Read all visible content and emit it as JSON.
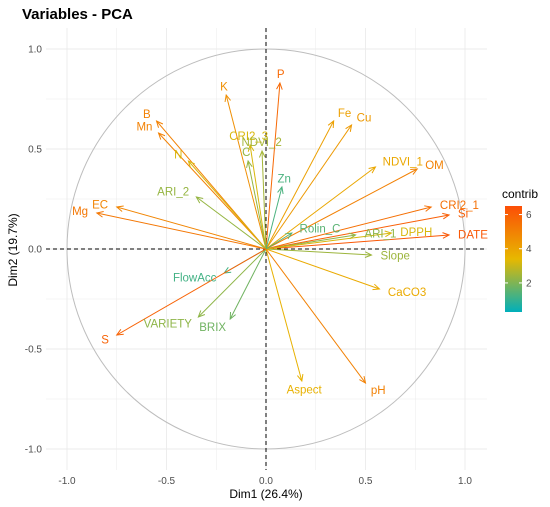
{
  "chart_data": {
    "type": "scatter",
    "title": "Variables - PCA",
    "xlabel": "Dim1 (26.4%)",
    "ylabel": "Dim2 (19.7%)",
    "xlim": [
      -1.1,
      1.1
    ],
    "ylim": [
      -1.05,
      1.05
    ],
    "xticks": [
      "-1.0",
      "-0.5",
      "0.0",
      "0.5",
      "1.0"
    ],
    "yticks": [
      "-1.0",
      "-0.5",
      "0.0",
      "0.5",
      "1.0"
    ],
    "grid": true,
    "legend": {
      "title": "contrib",
      "ticks": [
        "2",
        "4",
        "6"
      ],
      "range": [
        0.3,
        6.5
      ],
      "placement": "right"
    },
    "variables": [
      {
        "name": "P",
        "x": 0.07,
        "y": 0.83,
        "contrib": 5.7
      },
      {
        "name": "K",
        "x": -0.2,
        "y": 0.77,
        "contrib": 4.6
      },
      {
        "name": "B",
        "x": -0.55,
        "y": 0.64,
        "contrib": 5.0
      },
      {
        "name": "Mn",
        "x": -0.54,
        "y": 0.58,
        "contrib": 5.0
      },
      {
        "name": "CRI2_3",
        "x": -0.08,
        "y": 0.52,
        "contrib": 3.2
      },
      {
        "name": "NDVI_2",
        "x": -0.02,
        "y": 0.49,
        "contrib": 2.5
      },
      {
        "name": "C",
        "x": -0.09,
        "y": 0.44,
        "contrib": 2.3
      },
      {
        "name": "N",
        "x": -0.39,
        "y": 0.44,
        "contrib": 3.2
      },
      {
        "name": "Fe",
        "x": 0.34,
        "y": 0.64,
        "contrib": 4.1
      },
      {
        "name": "Cu",
        "x": 0.43,
        "y": 0.62,
        "contrib": 4.3
      },
      {
        "name": "NDVI_1",
        "x": 0.55,
        "y": 0.41,
        "contrib": 3.9
      },
      {
        "name": "OM",
        "x": 0.76,
        "y": 0.4,
        "contrib": 5.0
      },
      {
        "name": "CRI2_1",
        "x": 0.83,
        "y": 0.21,
        "contrib": 5.5
      },
      {
        "name": "Si",
        "x": 0.92,
        "y": 0.17,
        "contrib": 6.0
      },
      {
        "name": "DATE",
        "x": 0.92,
        "y": 0.07,
        "contrib": 6.2
      },
      {
        "name": "ARI_1",
        "x": 0.45,
        "y": 0.07,
        "contrib": 2.2
      },
      {
        "name": "DPPH",
        "x": 0.63,
        "y": 0.08,
        "contrib": 3.2
      },
      {
        "name": "Slope",
        "x": 0.53,
        "y": -0.03,
        "contrib": 2.4
      },
      {
        "name": "CaCO3",
        "x": 0.57,
        "y": -0.2,
        "contrib": 3.8
      },
      {
        "name": "Zn",
        "x": 0.08,
        "y": 0.31,
        "contrib": 1.3
      },
      {
        "name": "Rolin_C",
        "x": 0.13,
        "y": 0.08,
        "contrib": 1.5
      },
      {
        "name": "ARI_2",
        "x": -0.35,
        "y": 0.26,
        "contrib": 2.3
      },
      {
        "name": "EC",
        "x": -0.75,
        "y": 0.21,
        "contrib": 4.9
      },
      {
        "name": "Mg",
        "x": -0.85,
        "y": 0.18,
        "contrib": 5.3
      },
      {
        "name": "FlowAcc",
        "x": -0.21,
        "y": -0.12,
        "contrib": 1.2
      },
      {
        "name": "VARIETY",
        "x": -0.34,
        "y": -0.34,
        "contrib": 2.2
      },
      {
        "name": "BRIX",
        "x": -0.18,
        "y": -0.35,
        "contrib": 1.8
      },
      {
        "name": "S",
        "x": -0.75,
        "y": -0.43,
        "contrib": 5.9
      },
      {
        "name": "Aspect",
        "x": 0.18,
        "y": -0.66,
        "contrib": 3.6
      },
      {
        "name": "pH",
        "x": 0.5,
        "y": -0.67,
        "contrib": 5.0
      }
    ]
  }
}
